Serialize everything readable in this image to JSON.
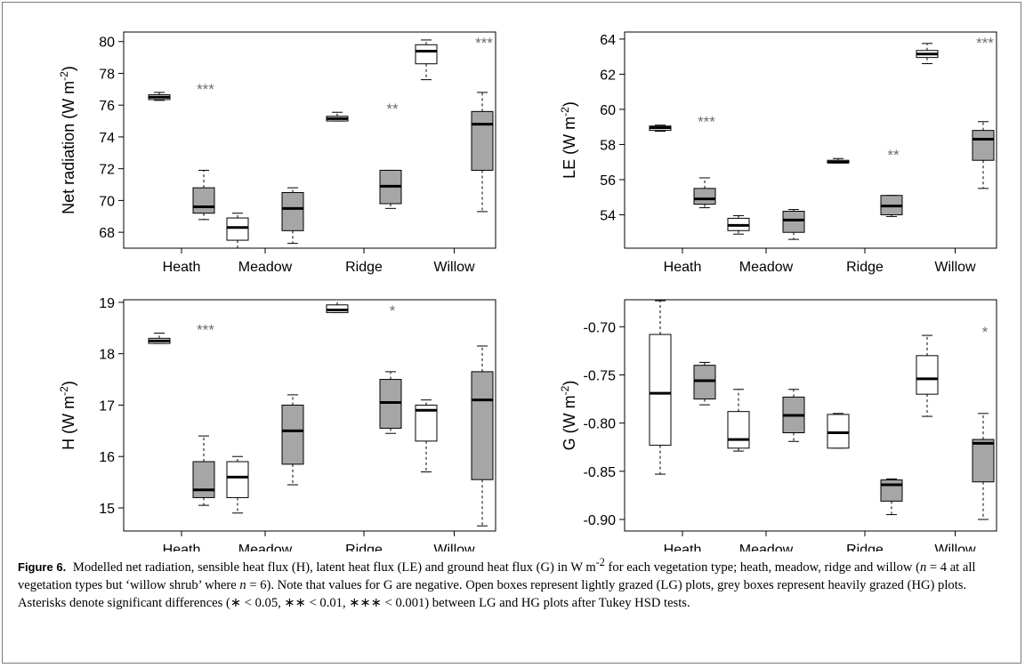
{
  "colors": {
    "lg_box": "#ffffff",
    "hg_box": "#a6a6a6",
    "stroke": "#000000",
    "star": "#6e6e6e"
  },
  "chart_data": [
    {
      "type": "boxplot",
      "ylabel": "Net radiation (W m<sup>-2</sup>)",
      "categories": [
        "Heath",
        "Meadow",
        "Ridge",
        "Willow"
      ],
      "ylim": [
        67,
        80.6
      ],
      "yticks": [
        68,
        70,
        72,
        74,
        76,
        78,
        80
      ],
      "ytick_labels": [
        "68",
        "70",
        "72",
        "74",
        "76",
        "78",
        "80"
      ],
      "series": [
        {
          "group": "LG",
          "boxes": [
            {
              "min": 76.3,
              "q1": 76.35,
              "median": 76.5,
              "q3": 76.65,
              "max": 76.8
            },
            {
              "min": 67.0,
              "q1": 67.5,
              "median": 68.3,
              "q3": 68.9,
              "max": 69.2
            },
            {
              "min": 75.0,
              "q1": 75.0,
              "median": 75.15,
              "q3": 75.3,
              "max": 75.55
            },
            {
              "min": 77.6,
              "q1": 78.6,
              "median": 79.4,
              "q3": 79.8,
              "max": 80.1
            }
          ]
        },
        {
          "group": "HG",
          "boxes": [
            {
              "min": 68.8,
              "q1": 69.2,
              "median": 69.6,
              "q3": 70.8,
              "max": 71.9
            },
            {
              "min": 67.3,
              "q1": 68.1,
              "median": 69.5,
              "q3": 70.5,
              "max": 70.8
            },
            {
              "min": 69.5,
              "q1": 69.8,
              "median": 70.9,
              "q3": 71.9,
              "max": 71.9
            },
            {
              "min": 69.3,
              "q1": 71.9,
              "median": 74.8,
              "q3": 75.6,
              "max": 76.8
            }
          ]
        }
      ],
      "significance": [
        "***",
        "",
        "**",
        "***"
      ]
    },
    {
      "type": "boxplot",
      "ylabel": "LE (W m<sup>-2</sup>)",
      "categories": [
        "Heath",
        "Meadow",
        "Ridge",
        "Willow"
      ],
      "ylim": [
        52.1,
        64.4
      ],
      "yticks": [
        54,
        56,
        58,
        60,
        62,
        64
      ],
      "ytick_labels": [
        "54",
        "56",
        "58",
        "60",
        "62",
        "64"
      ],
      "series": [
        {
          "group": "LG",
          "boxes": [
            {
              "min": 58.75,
              "q1": 58.8,
              "median": 58.95,
              "q3": 59.05,
              "max": 59.1
            },
            {
              "min": 52.9,
              "q1": 53.1,
              "median": 53.4,
              "q3": 53.8,
              "max": 53.95
            },
            {
              "min": 56.95,
              "q1": 56.95,
              "median": 57.0,
              "q3": 57.1,
              "max": 57.2
            },
            {
              "min": 62.6,
              "q1": 62.95,
              "median": 63.15,
              "q3": 63.35,
              "max": 63.75
            }
          ]
        },
        {
          "group": "HG",
          "boxes": [
            {
              "min": 54.4,
              "q1": 54.6,
              "median": 54.9,
              "q3": 55.5,
              "max": 56.1
            },
            {
              "min": 52.6,
              "q1": 53.0,
              "median": 53.7,
              "q3": 54.2,
              "max": 54.3
            },
            {
              "min": 53.9,
              "q1": 54.0,
              "median": 54.5,
              "q3": 55.1,
              "max": 55.1
            },
            {
              "min": 55.5,
              "q1": 57.1,
              "median": 58.3,
              "q3": 58.8,
              "max": 59.3
            }
          ]
        }
      ],
      "significance": [
        "***",
        "",
        "**",
        "***"
      ]
    },
    {
      "type": "boxplot",
      "ylabel": "H (W m<sup>-2</sup>)",
      "categories": [
        "Heath",
        "Meadow",
        "Ridge",
        "Willow"
      ],
      "ylim": [
        14.55,
        19.05
      ],
      "yticks": [
        15,
        16,
        17,
        18,
        19
      ],
      "ytick_labels": [
        "15",
        "16",
        "17",
        "18",
        "19"
      ],
      "series": [
        {
          "group": "LG",
          "boxes": [
            {
              "min": 18.2,
              "q1": 18.2,
              "median": 18.25,
              "q3": 18.3,
              "max": 18.4
            },
            {
              "min": 14.9,
              "q1": 15.2,
              "median": 15.6,
              "q3": 15.9,
              "max": 16.0
            },
            {
              "min": 18.8,
              "q1": 18.8,
              "median": 18.85,
              "q3": 18.95,
              "max": 19.05
            },
            {
              "min": 15.7,
              "q1": 16.3,
              "median": 16.9,
              "q3": 17.0,
              "max": 17.1
            }
          ]
        },
        {
          "group": "HG",
          "boxes": [
            {
              "min": 15.05,
              "q1": 15.2,
              "median": 15.35,
              "q3": 15.9,
              "max": 16.4
            },
            {
              "min": 15.45,
              "q1": 15.85,
              "median": 16.5,
              "q3": 17.0,
              "max": 17.2
            },
            {
              "min": 16.45,
              "q1": 16.55,
              "median": 17.05,
              "q3": 17.5,
              "max": 17.65
            },
            {
              "min": 14.65,
              "q1": 15.55,
              "median": 17.1,
              "q3": 17.65,
              "max": 18.15
            }
          ]
        }
      ],
      "significance": [
        "***",
        "",
        "*",
        ""
      ]
    },
    {
      "type": "boxplot",
      "ylabel": "G (W m<sup>-2</sup>)",
      "categories": [
        "Heath",
        "Meadow",
        "Ridge",
        "Willow"
      ],
      "ylim": [
        -0.912,
        -0.672
      ],
      "yticks": [
        -0.9,
        -0.85,
        -0.8,
        -0.75,
        -0.7
      ],
      "ytick_labels": [
        "-0.90",
        "-0.85",
        "-0.80",
        "-0.75",
        "-0.70"
      ],
      "series": [
        {
          "group": "LG",
          "boxes": [
            {
              "min": -0.853,
              "q1": -0.823,
              "median": -0.769,
              "q3": -0.708,
              "max": -0.673
            },
            {
              "min": -0.829,
              "q1": -0.826,
              "median": -0.817,
              "q3": -0.788,
              "max": -0.765
            },
            {
              "min": -0.826,
              "q1": -0.826,
              "median": -0.81,
              "q3": -0.791,
              "max": -0.79
            },
            {
              "min": -0.793,
              "q1": -0.77,
              "median": -0.754,
              "q3": -0.73,
              "max": -0.709
            }
          ]
        },
        {
          "group": "HG",
          "boxes": [
            {
              "min": -0.781,
              "q1": -0.775,
              "median": -0.756,
              "q3": -0.74,
              "max": -0.737
            },
            {
              "min": -0.819,
              "q1": -0.81,
              "median": -0.792,
              "q3": -0.773,
              "max": -0.765
            },
            {
              "min": -0.895,
              "q1": -0.881,
              "median": -0.864,
              "q3": -0.859,
              "max": -0.858
            },
            {
              "min": -0.9,
              "q1": -0.861,
              "median": -0.821,
              "q3": -0.817,
              "max": -0.79
            }
          ]
        }
      ],
      "significance": [
        "",
        "",
        "",
        "*"
      ]
    }
  ],
  "caption": {
    "label": "Figure 6.",
    "text": "Modelled net radiation, sensible heat flux (H), latent heat flux (LE) and ground heat flux (G) in W m<sup>-2</sup> for each vegetation type; heath, meadow, ridge and willow (<i>n</i> = 4 at all vegetation types but ‘willow shrub’ where <i>n</i> = 6). Note that values for G are negative. Open boxes represent lightly grazed (LG) plots, grey boxes represent heavily grazed (HG) plots. Asterisks denote significant differences (∗ &lt; 0.05, ∗∗ &lt; 0.01, ∗∗∗ &lt; 0.001) between LG and HG plots after Tukey HSD tests."
  }
}
